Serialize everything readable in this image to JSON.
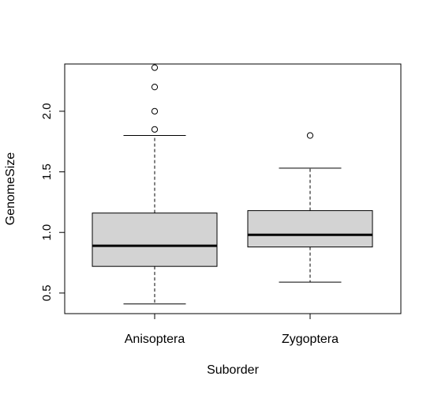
{
  "chart_data": {
    "type": "boxplot",
    "xlabel": "Suborder",
    "ylabel": "GenomeSize",
    "ylim": [
      0.33,
      2.39
    ],
    "yticks": [
      {
        "value": 0.5,
        "label": "0.5"
      },
      {
        "value": 1.0,
        "label": "1.0"
      },
      {
        "value": 1.5,
        "label": "1.5"
      },
      {
        "value": 2.0,
        "label": "2.0"
      }
    ],
    "categories": [
      "Anisoptera",
      "Zygoptera"
    ],
    "boxes": [
      {
        "category": "Anisoptera",
        "whisker_low": 0.41,
        "q1": 0.72,
        "median": 0.89,
        "q3": 1.16,
        "whisker_high": 1.8,
        "outliers": [
          1.85,
          2.0,
          2.2,
          2.36
        ]
      },
      {
        "category": "Zygoptera",
        "whisker_low": 0.59,
        "q1": 0.88,
        "median": 0.98,
        "q3": 1.18,
        "whisker_high": 1.53,
        "outliers": [
          1.8
        ]
      }
    ],
    "box_fill": "#d3d3d3",
    "grid": false,
    "legend": "none"
  }
}
